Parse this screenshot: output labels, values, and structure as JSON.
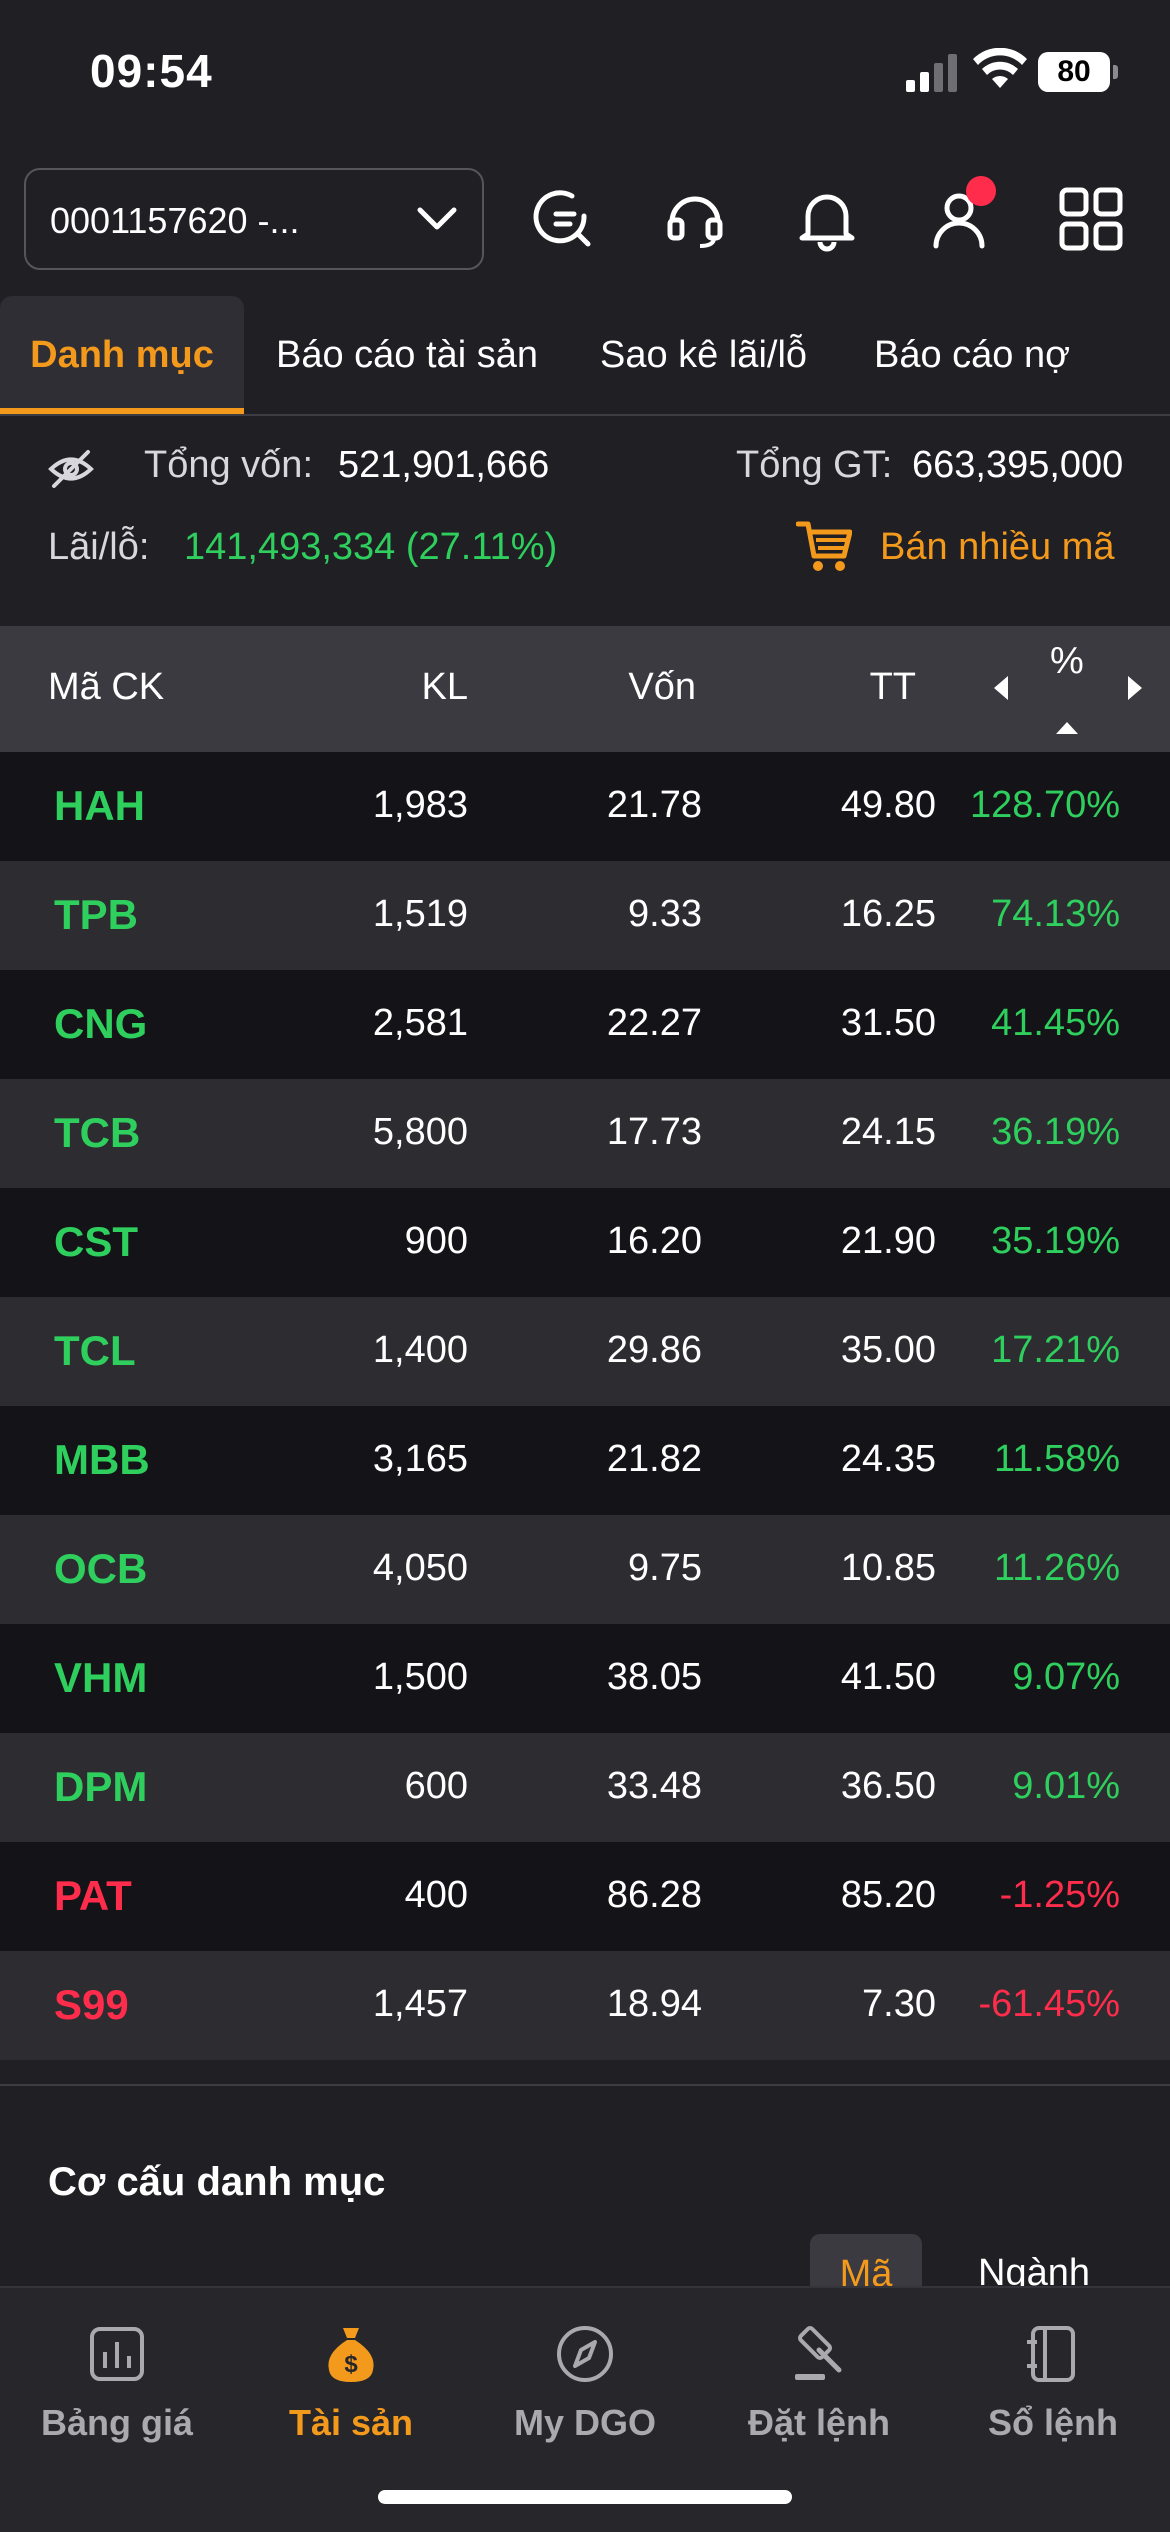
{
  "status_bar": {
    "time": "09:54",
    "battery": "80"
  },
  "header": {
    "account": "0001157620 -..."
  },
  "tabs": [
    "Danh mục",
    "Báo cáo tài sản",
    "Sao kê lãi/lỗ",
    "Báo cáo nợ"
  ],
  "summary": {
    "tong_von_label": "Tổng vốn:",
    "tong_von_value": "521,901,666",
    "tong_gt_label": "Tổng GT:",
    "tong_gt_value": "663,395,000",
    "lai_lo_label": "Lãi/lỗ:",
    "lai_lo_value": "141,493,334 (27.11%)",
    "sell_multi_label": "Bán nhiều mã"
  },
  "table": {
    "headers": {
      "symbol": "Mã CK",
      "kl": "KL",
      "von": "Vốn",
      "tt": "TT",
      "pct": "%"
    },
    "rows": [
      {
        "symbol": "HAH",
        "kl": "1,983",
        "von": "21.78",
        "tt": "49.80",
        "pct": "128.70%",
        "trend": "up"
      },
      {
        "symbol": "TPB",
        "kl": "1,519",
        "von": "9.33",
        "tt": "16.25",
        "pct": "74.13%",
        "trend": "up"
      },
      {
        "symbol": "CNG",
        "kl": "2,581",
        "von": "22.27",
        "tt": "31.50",
        "pct": "41.45%",
        "trend": "up"
      },
      {
        "symbol": "TCB",
        "kl": "5,800",
        "von": "17.73",
        "tt": "24.15",
        "pct": "36.19%",
        "trend": "up"
      },
      {
        "symbol": "CST",
        "kl": "900",
        "von": "16.20",
        "tt": "21.90",
        "pct": "35.19%",
        "trend": "up"
      },
      {
        "symbol": "TCL",
        "kl": "1,400",
        "von": "29.86",
        "tt": "35.00",
        "pct": "17.21%",
        "trend": "up"
      },
      {
        "symbol": "MBB",
        "kl": "3,165",
        "von": "21.82",
        "tt": "24.35",
        "pct": "11.58%",
        "trend": "up"
      },
      {
        "symbol": "OCB",
        "kl": "4,050",
        "von": "9.75",
        "tt": "10.85",
        "pct": "11.26%",
        "trend": "up"
      },
      {
        "symbol": "VHM",
        "kl": "1,500",
        "von": "38.05",
        "tt": "41.50",
        "pct": "9.07%",
        "trend": "up"
      },
      {
        "symbol": "DPM",
        "kl": "600",
        "von": "33.48",
        "tt": "36.50",
        "pct": "9.01%",
        "trend": "up"
      },
      {
        "symbol": "PAT",
        "kl": "400",
        "von": "86.28",
        "tt": "85.20",
        "pct": "-1.25%",
        "trend": "down"
      },
      {
        "symbol": "S99",
        "kl": "1,457",
        "von": "18.94",
        "tt": "7.30",
        "pct": "-61.45%",
        "trend": "down"
      }
    ]
  },
  "structure": {
    "title": "Cơ cấu danh mục",
    "seg_ma": "Mã",
    "seg_nganh": "Ngành"
  },
  "bottom_nav": [
    {
      "label": "Bảng giá",
      "icon": "chart-icon"
    },
    {
      "label": "Tài sản",
      "icon": "money-bag-icon"
    },
    {
      "label": "My DGO",
      "icon": "compass-icon"
    },
    {
      "label": "Đặt lệnh",
      "icon": "gavel-icon"
    },
    {
      "label": "Sổ lệnh",
      "icon": "ledger-icon"
    }
  ],
  "colors": {
    "accent": "#f39a1d",
    "up": "#2fcf5e",
    "down": "#ff2d4b"
  }
}
